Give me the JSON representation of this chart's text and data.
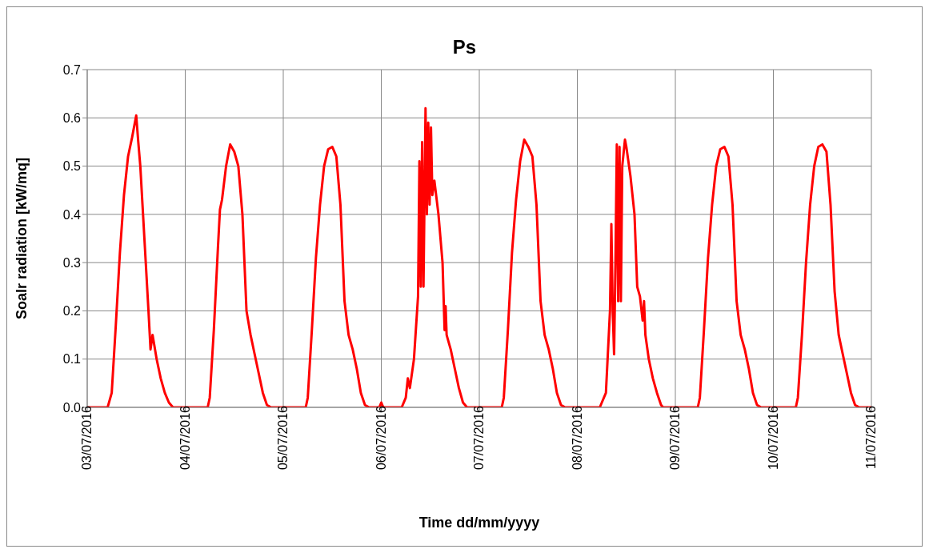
{
  "chart_data": {
    "type": "line",
    "title": "Ps",
    "xlabel": "Time dd/mm/yyyy",
    "ylabel": "Soalr radiation [kW/mq]",
    "xlim": [
      "2016-07-03",
      "2016-07-11"
    ],
    "xticks": [
      {
        "value": "2016-07-03",
        "label": "03/07/2016"
      },
      {
        "value": "2016-07-04",
        "label": "04/07/2016"
      },
      {
        "value": "2016-07-05",
        "label": "05/07/2016"
      },
      {
        "value": "2016-07-06",
        "label": "06/07/2016"
      },
      {
        "value": "2016-07-07",
        "label": "07/07/2016"
      },
      {
        "value": "2016-07-08",
        "label": "08/07/2016"
      },
      {
        "value": "2016-07-09",
        "label": "09/07/2016"
      },
      {
        "value": "2016-07-10",
        "label": "10/07/2016"
      },
      {
        "value": "2016-07-11",
        "label": "11/07/2016"
      }
    ],
    "ylim": [
      0,
      0.7
    ],
    "yticks": [
      {
        "value": 0,
        "label": "0.0"
      },
      {
        "value": 0.1,
        "label": "0.1"
      },
      {
        "value": 0.2,
        "label": "0.2"
      },
      {
        "value": 0.3,
        "label": "0.3"
      },
      {
        "value": 0.4,
        "label": "0.4"
      },
      {
        "value": 0.5,
        "label": "0.5"
      },
      {
        "value": 0.6,
        "label": "0.6"
      },
      {
        "value": 0.7,
        "label": "0.7"
      }
    ],
    "grid": true,
    "legend": false,
    "marker": "none",
    "line_style": "solid",
    "series": [
      {
        "color": "#ff0000",
        "x": [
          "2016-07-03T00:00",
          "2016-07-03T05:00",
          "2016-07-03T06:00",
          "2016-07-03T07:00",
          "2016-07-03T08:00",
          "2016-07-03T09:00",
          "2016-07-03T10:00",
          "2016-07-03T11:00",
          "2016-07-03T12:00",
          "2016-07-03T12:30",
          "2016-07-03T13:00",
          "2016-07-03T14:00",
          "2016-07-03T15:00",
          "2016-07-03T15:30",
          "2016-07-03T16:00",
          "2016-07-03T17:00",
          "2016-07-03T18:00",
          "2016-07-03T19:00",
          "2016-07-03T20:00",
          "2016-07-03T21:00",
          "2016-07-04T05:30",
          "2016-07-04T06:00",
          "2016-07-04T07:00",
          "2016-07-04T08:00",
          "2016-07-04T08:30",
          "2016-07-04T09:00",
          "2016-07-04T10:00",
          "2016-07-04T11:00",
          "2016-07-04T12:00",
          "2016-07-04T13:00",
          "2016-07-04T14:00",
          "2016-07-04T15:00",
          "2016-07-04T16:00",
          "2016-07-04T17:00",
          "2016-07-04T18:00",
          "2016-07-04T19:00",
          "2016-07-04T20:00",
          "2016-07-04T21:00",
          "2016-07-05T05:30",
          "2016-07-05T06:00",
          "2016-07-05T07:00",
          "2016-07-05T08:00",
          "2016-07-05T09:00",
          "2016-07-05T10:00",
          "2016-07-05T11:00",
          "2016-07-05T12:00",
          "2016-07-05T13:00",
          "2016-07-05T14:00",
          "2016-07-05T15:00",
          "2016-07-05T16:00",
          "2016-07-05T17:00",
          "2016-07-05T18:00",
          "2016-07-05T19:00",
          "2016-07-05T20:00",
          "2016-07-05T21:00",
          "2016-07-05T23:30",
          "2016-07-06T00:00",
          "2016-07-06T00:30",
          "2016-07-06T05:00",
          "2016-07-06T06:00",
          "2016-07-06T06:30",
          "2016-07-06T07:00",
          "2016-07-06T08:00",
          "2016-07-06T09:00",
          "2016-07-06T09:20",
          "2016-07-06T09:40",
          "2016-07-06T10:00",
          "2016-07-06T10:20",
          "2016-07-06T10:50",
          "2016-07-06T11:10",
          "2016-07-06T11:30",
          "2016-07-06T11:50",
          "2016-07-06T12:10",
          "2016-07-06T12:30",
          "2016-07-06T13:00",
          "2016-07-06T14:00",
          "2016-07-06T15:00",
          "2016-07-06T15:30",
          "2016-07-06T15:45",
          "2016-07-06T16:00",
          "2016-07-06T17:00",
          "2016-07-06T18:00",
          "2016-07-06T19:00",
          "2016-07-06T20:00",
          "2016-07-06T21:00",
          "2016-07-07T05:30",
          "2016-07-07T06:00",
          "2016-07-07T07:00",
          "2016-07-07T08:00",
          "2016-07-07T09:00",
          "2016-07-07T10:00",
          "2016-07-07T11:00",
          "2016-07-07T12:00",
          "2016-07-07T13:00",
          "2016-07-07T14:00",
          "2016-07-07T15:00",
          "2016-07-07T16:00",
          "2016-07-07T17:00",
          "2016-07-07T18:00",
          "2016-07-07T19:00",
          "2016-07-07T20:00",
          "2016-07-07T21:00",
          "2016-07-08T05:30",
          "2016-07-08T06:00",
          "2016-07-08T07:00",
          "2016-07-08T08:00",
          "2016-07-08T08:20",
          "2016-07-08T08:40",
          "2016-07-08T09:00",
          "2016-07-08T09:20",
          "2016-07-08T09:40",
          "2016-07-08T10:00",
          "2016-07-08T10:20",
          "2016-07-08T10:40",
          "2016-07-08T11:00",
          "2016-07-08T11:40",
          "2016-07-08T12:00",
          "2016-07-08T13:00",
          "2016-07-08T14:00",
          "2016-07-08T14:40",
          "2016-07-08T15:20",
          "2016-07-08T16:00",
          "2016-07-08T16:20",
          "2016-07-08T16:40",
          "2016-07-08T17:30",
          "2016-07-08T18:30",
          "2016-07-08T19:30",
          "2016-07-08T20:30",
          "2016-07-08T21:00",
          "2016-07-09T05:30",
          "2016-07-09T06:00",
          "2016-07-09T07:00",
          "2016-07-09T08:00",
          "2016-07-09T09:00",
          "2016-07-09T10:00",
          "2016-07-09T11:00",
          "2016-07-09T12:00",
          "2016-07-09T13:00",
          "2016-07-09T14:00",
          "2016-07-09T15:00",
          "2016-07-09T16:00",
          "2016-07-09T17:00",
          "2016-07-09T18:00",
          "2016-07-09T19:00",
          "2016-07-09T20:00",
          "2016-07-09T21:00",
          "2016-07-10T05:30",
          "2016-07-10T06:00",
          "2016-07-10T07:00",
          "2016-07-10T08:00",
          "2016-07-10T09:00",
          "2016-07-10T10:00",
          "2016-07-10T11:00",
          "2016-07-10T12:00",
          "2016-07-10T13:00",
          "2016-07-10T14:00",
          "2016-07-10T15:00",
          "2016-07-10T16:00",
          "2016-07-10T17:00",
          "2016-07-10T18:00",
          "2016-07-10T19:00",
          "2016-07-10T20:00",
          "2016-07-10T21:00",
          "2016-07-11T00:00"
        ],
        "values": [
          0,
          0,
          0.03,
          0.17,
          0.32,
          0.44,
          0.52,
          0.56,
          0.605,
          0.55,
          0.5,
          0.35,
          0.2,
          0.12,
          0.15,
          0.1,
          0.06,
          0.03,
          0.01,
          0,
          0,
          0.02,
          0.16,
          0.33,
          0.41,
          0.43,
          0.5,
          0.545,
          0.53,
          0.5,
          0.4,
          0.2,
          0.15,
          0.11,
          0.07,
          0.03,
          0.005,
          0,
          0,
          0.02,
          0.16,
          0.31,
          0.42,
          0.5,
          0.535,
          0.54,
          0.52,
          0.42,
          0.22,
          0.15,
          0.12,
          0.08,
          0.03,
          0.005,
          0,
          0,
          0.01,
          0,
          0,
          0.02,
          0.06,
          0.04,
          0.1,
          0.23,
          0.51,
          0.25,
          0.55,
          0.25,
          0.62,
          0.4,
          0.59,
          0.42,
          0.58,
          0.44,
          0.47,
          0.4,
          0.3,
          0.16,
          0.21,
          0.15,
          0.12,
          0.08,
          0.04,
          0.01,
          0,
          0,
          0.02,
          0.16,
          0.32,
          0.43,
          0.51,
          0.555,
          0.54,
          0.52,
          0.42,
          0.22,
          0.15,
          0.12,
          0.08,
          0.03,
          0.005,
          0,
          0,
          0.01,
          0.03,
          0.2,
          0.38,
          0.2,
          0.11,
          0.3,
          0.545,
          0.22,
          0.54,
          0.22,
          0.5,
          0.555,
          0.54,
          0.48,
          0.4,
          0.25,
          0.23,
          0.18,
          0.22,
          0.15,
          0.1,
          0.06,
          0.03,
          0.005,
          0,
          0,
          0.02,
          0.16,
          0.31,
          0.42,
          0.5,
          0.535,
          0.54,
          0.52,
          0.42,
          0.22,
          0.15,
          0.12,
          0.08,
          0.03,
          0.005,
          0,
          0,
          0.02,
          0.15,
          0.3,
          0.42,
          0.5,
          0.54,
          0.545,
          0.53,
          0.42,
          0.24,
          0.15,
          0.11,
          0.07,
          0.03,
          0.005,
          0,
          0
        ]
      }
    ]
  }
}
